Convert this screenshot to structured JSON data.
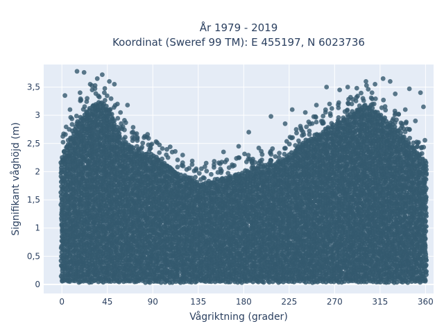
{
  "chart_data": {
    "type": "scatter",
    "title_line1": "År 1979 - 2019",
    "title_line2": "Koordinat (Sweref 99 TM): E 455197, N 6023736",
    "xlabel": "Vågriktning (grader)",
    "ylabel": "Signifikant våghöjd (m)",
    "xlim": [
      -18,
      368
    ],
    "ylim": [
      -0.16,
      3.9
    ],
    "x_ticks": [
      0,
      45,
      90,
      135,
      180,
      225,
      270,
      315,
      360
    ],
    "x_tick_labels": [
      "0",
      "45",
      "90",
      "135",
      "180",
      "225",
      "270",
      "315",
      "360"
    ],
    "y_ticks": [
      0,
      0.5,
      1,
      1.5,
      2,
      2.5,
      3,
      3.5
    ],
    "y_tick_labels": [
      "0",
      "0,5",
      "1",
      "1,5",
      "2",
      "2,5",
      "3",
      "3,5"
    ],
    "grid": true,
    "marker_color": "#34596e",
    "background_color": "#e5ecf6",
    "envelope": {
      "x": [
        0,
        10,
        20,
        30,
        40,
        50,
        60,
        70,
        80,
        90,
        100,
        110,
        120,
        130,
        140,
        150,
        160,
        170,
        180,
        190,
        200,
        210,
        220,
        230,
        240,
        250,
        260,
        270,
        280,
        290,
        300,
        310,
        320,
        330,
        340,
        350,
        360
      ],
      "ymax": [
        2.3,
        2.7,
        3.0,
        3.2,
        3.25,
        3.0,
        2.6,
        2.45,
        2.35,
        2.3,
        2.2,
        2.05,
        1.95,
        1.85,
        1.8,
        1.85,
        1.9,
        1.95,
        2.0,
        2.05,
        2.1,
        2.15,
        2.25,
        2.4,
        2.55,
        2.65,
        2.75,
        2.85,
        2.95,
        3.1,
        3.2,
        3.1,
        2.95,
        2.8,
        2.6,
        2.4,
        2.2
      ]
    },
    "outliers": [
      {
        "x": 15,
        "y": 3.78
      },
      {
        "x": 22,
        "y": 3.76
      },
      {
        "x": 35,
        "y": 3.65
      },
      {
        "x": 40,
        "y": 3.72
      },
      {
        "x": 47,
        "y": 3.6
      },
      {
        "x": 52,
        "y": 3.55
      },
      {
        "x": 30,
        "y": 3.45
      },
      {
        "x": 25,
        "y": 3.3
      },
      {
        "x": 65,
        "y": 3.18
      },
      {
        "x": 58,
        "y": 3.05
      },
      {
        "x": 70,
        "y": 2.55
      },
      {
        "x": 88,
        "y": 2.47
      },
      {
        "x": 95,
        "y": 2.2
      },
      {
        "x": 105,
        "y": 2.25
      },
      {
        "x": 120,
        "y": 2.1
      },
      {
        "x": 133,
        "y": 2.05
      },
      {
        "x": 160,
        "y": 2.35
      },
      {
        "x": 175,
        "y": 2.45
      },
      {
        "x": 185,
        "y": 2.7
      },
      {
        "x": 207,
        "y": 2.98
      },
      {
        "x": 228,
        "y": 3.1
      },
      {
        "x": 232,
        "y": 2.75
      },
      {
        "x": 241,
        "y": 3.05
      },
      {
        "x": 252,
        "y": 3.18
      },
      {
        "x": 265,
        "y": 3.2
      },
      {
        "x": 262,
        "y": 3.5
      },
      {
        "x": 275,
        "y": 3.45
      },
      {
        "x": 283,
        "y": 3.5
      },
      {
        "x": 292,
        "y": 3.48
      },
      {
        "x": 301,
        "y": 3.6
      },
      {
        "x": 310,
        "y": 3.55
      },
      {
        "x": 318,
        "y": 3.65
      },
      {
        "x": 325,
        "y": 3.6
      },
      {
        "x": 330,
        "y": 3.38
      },
      {
        "x": 344,
        "y": 3.47
      },
      {
        "x": 355,
        "y": 3.4
      },
      {
        "x": 358,
        "y": 3.15
      },
      {
        "x": 350,
        "y": 2.9
      },
      {
        "x": 3,
        "y": 3.35
      },
      {
        "x": 8,
        "y": 3.1
      },
      {
        "x": 18,
        "y": 3.4
      },
      {
        "x": 28,
        "y": 3.55
      },
      {
        "x": 42,
        "y": 3.4
      },
      {
        "x": 55,
        "y": 3.2
      },
      {
        "x": 298,
        "y": 3.3
      },
      {
        "x": 307,
        "y": 3.4
      },
      {
        "x": 340,
        "y": 3.1
      },
      {
        "x": 221,
        "y": 2.85
      }
    ]
  }
}
